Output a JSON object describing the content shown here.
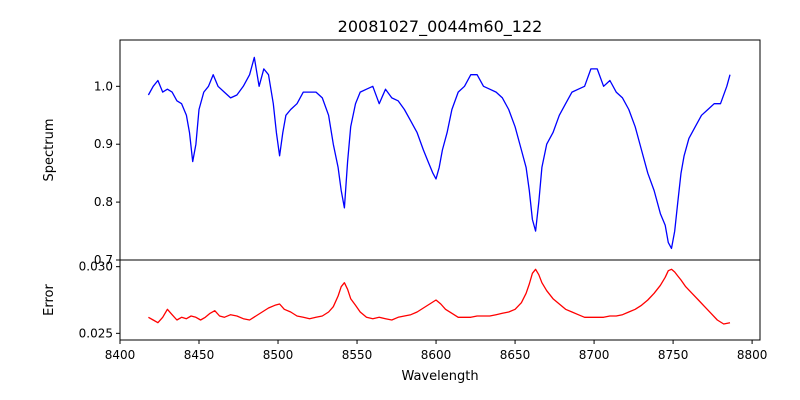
{
  "chart_data": [
    {
      "type": "line",
      "title": "20081027_0044m60_122",
      "xlabel": "",
      "ylabel": "Spectrum",
      "xlim": [
        8400,
        8805
      ],
      "ylim": [
        0.7,
        1.08
      ],
      "yticks": [
        0.7,
        0.8,
        0.9,
        1.0
      ],
      "ytick_labels": [
        "0.7",
        "0.8",
        "0.9",
        "1.0"
      ],
      "grid": false,
      "series": [
        {
          "color": "#0000ff",
          "x": [
            8418,
            8421,
            8424,
            8427,
            8430,
            8433,
            8436,
            8439,
            8442,
            8444,
            8446,
            8448,
            8450,
            8453,
            8456,
            8459,
            8462,
            8466,
            8470,
            8474,
            8478,
            8482,
            8485,
            8488,
            8491,
            8494,
            8497,
            8499,
            8501,
            8503,
            8505,
            8508,
            8512,
            8516,
            8520,
            8524,
            8528,
            8532,
            8535,
            8538,
            8540,
            8542,
            8544,
            8546,
            8549,
            8552,
            8556,
            8560,
            8564,
            8568,
            8572,
            8576,
            8580,
            8584,
            8588,
            8592,
            8595,
            8598,
            8600,
            8602,
            8604,
            8607,
            8610,
            8614,
            8618,
            8622,
            8626,
            8630,
            8634,
            8638,
            8642,
            8646,
            8650,
            8654,
            8657,
            8659,
            8661,
            8663,
            8665,
            8667,
            8670,
            8674,
            8678,
            8682,
            8686,
            8690,
            8694,
            8698,
            8702,
            8706,
            8710,
            8714,
            8718,
            8722,
            8726,
            8730,
            8734,
            8738,
            8742,
            8745,
            8747,
            8749,
            8751,
            8753,
            8755,
            8757,
            8760,
            8764,
            8768,
            8772,
            8776,
            8780,
            8784,
            8786
          ],
          "y": [
            0.985,
            1.0,
            1.01,
            0.99,
            0.995,
            0.99,
            0.975,
            0.97,
            0.95,
            0.92,
            0.87,
            0.9,
            0.96,
            0.99,
            1.0,
            1.02,
            1.0,
            0.99,
            0.98,
            0.985,
            1.0,
            1.02,
            1.05,
            1.0,
            1.03,
            1.02,
            0.97,
            0.92,
            0.88,
            0.92,
            0.95,
            0.96,
            0.97,
            0.99,
            0.99,
            0.99,
            0.98,
            0.95,
            0.9,
            0.86,
            0.82,
            0.79,
            0.87,
            0.93,
            0.97,
            0.99,
            0.995,
            1.0,
            0.97,
            0.995,
            0.98,
            0.975,
            0.96,
            0.94,
            0.92,
            0.89,
            0.87,
            0.85,
            0.84,
            0.86,
            0.89,
            0.92,
            0.96,
            0.99,
            1.0,
            1.02,
            1.02,
            1.0,
            0.995,
            0.99,
            0.98,
            0.96,
            0.93,
            0.89,
            0.86,
            0.82,
            0.77,
            0.75,
            0.8,
            0.86,
            0.9,
            0.92,
            0.95,
            0.97,
            0.99,
            0.995,
            1.0,
            1.03,
            1.03,
            1.0,
            1.01,
            0.99,
            0.98,
            0.96,
            0.93,
            0.89,
            0.85,
            0.82,
            0.78,
            0.76,
            0.73,
            0.72,
            0.75,
            0.8,
            0.85,
            0.88,
            0.91,
            0.93,
            0.95,
            0.96,
            0.97,
            0.97,
            1.0,
            1.02
          ]
        }
      ]
    },
    {
      "type": "line",
      "xlabel": "Wavelength",
      "ylabel": "Error",
      "xlim": [
        8400,
        8805
      ],
      "ylim": [
        0.0245,
        0.0305
      ],
      "xticks": [
        8400,
        8450,
        8500,
        8550,
        8600,
        8650,
        8700,
        8750,
        8800
      ],
      "xtick_labels": [
        "8400",
        "8450",
        "8500",
        "8550",
        "8600",
        "8650",
        "8700",
        "8750",
        "8800"
      ],
      "yticks": [
        0.025,
        0.03
      ],
      "ytick_labels": [
        "0.025",
        "0.030"
      ],
      "grid": false,
      "series": [
        {
          "color": "#ff0000",
          "x": [
            8418,
            8421,
            8424,
            8427,
            8430,
            8433,
            8436,
            8439,
            8442,
            8445,
            8448,
            8451,
            8454,
            8457,
            8460,
            8463,
            8466,
            8470,
            8474,
            8478,
            8482,
            8486,
            8490,
            8494,
            8498,
            8501,
            8504,
            8508,
            8512,
            8516,
            8520,
            8524,
            8528,
            8532,
            8535,
            8538,
            8540,
            8542,
            8544,
            8546,
            8549,
            8552,
            8556,
            8560,
            8564,
            8568,
            8572,
            8576,
            8580,
            8584,
            8588,
            8592,
            8596,
            8600,
            8603,
            8606,
            8610,
            8614,
            8618,
            8622,
            8626,
            8630,
            8634,
            8638,
            8642,
            8646,
            8650,
            8654,
            8657,
            8659,
            8661,
            8663,
            8665,
            8667,
            8670,
            8674,
            8678,
            8682,
            8686,
            8690,
            8694,
            8698,
            8702,
            8706,
            8710,
            8714,
            8718,
            8722,
            8726,
            8730,
            8734,
            8738,
            8742,
            8745,
            8747,
            8749,
            8751,
            8753,
            8755,
            8758,
            8762,
            8766,
            8770,
            8774,
            8778,
            8782,
            8786
          ],
          "y": [
            0.0262,
            0.026,
            0.0258,
            0.0262,
            0.0268,
            0.0264,
            0.026,
            0.0262,
            0.0261,
            0.0263,
            0.0262,
            0.026,
            0.0262,
            0.0265,
            0.0267,
            0.0263,
            0.0262,
            0.0264,
            0.0263,
            0.0261,
            0.026,
            0.0263,
            0.0266,
            0.0269,
            0.0271,
            0.0272,
            0.0268,
            0.0266,
            0.0263,
            0.0262,
            0.0261,
            0.0262,
            0.0263,
            0.0266,
            0.027,
            0.0278,
            0.0285,
            0.0288,
            0.0283,
            0.0276,
            0.0271,
            0.0266,
            0.0262,
            0.0261,
            0.0262,
            0.0261,
            0.026,
            0.0262,
            0.0263,
            0.0264,
            0.0266,
            0.0269,
            0.0272,
            0.0275,
            0.0272,
            0.0268,
            0.0265,
            0.0262,
            0.0262,
            0.0262,
            0.0263,
            0.0263,
            0.0263,
            0.0264,
            0.0265,
            0.0266,
            0.0268,
            0.0273,
            0.028,
            0.0287,
            0.0295,
            0.0298,
            0.0294,
            0.0288,
            0.0282,
            0.0276,
            0.0272,
            0.0268,
            0.0266,
            0.0264,
            0.0262,
            0.0262,
            0.0262,
            0.0262,
            0.0263,
            0.0263,
            0.0264,
            0.0266,
            0.0268,
            0.0271,
            0.0275,
            0.028,
            0.0286,
            0.0292,
            0.0297,
            0.0298,
            0.0296,
            0.0293,
            0.029,
            0.0285,
            0.028,
            0.0275,
            0.027,
            0.0265,
            0.026,
            0.0257,
            0.0258
          ]
        }
      ]
    }
  ]
}
